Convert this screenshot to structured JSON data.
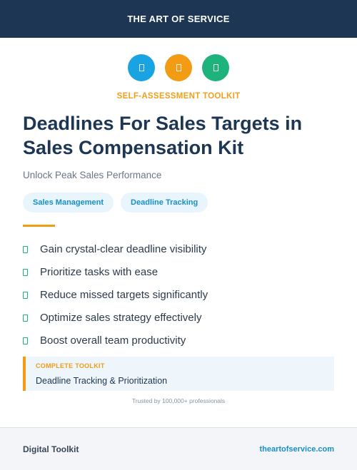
{
  "header": {
    "brand": "THE ART OF SERVICE"
  },
  "icons": [
    {
      "name": "blue-badge-icon",
      "color": "#1aa3e3"
    },
    {
      "name": "orange-badge-icon",
      "color": "#f29b14"
    },
    {
      "name": "green-badge-icon",
      "color": "#1eb37c"
    }
  ],
  "hero": {
    "kicker": "SELF-ASSESSMENT TOOLKIT",
    "title": "Deadlines For Sales Targets in Sales Compensation Kit",
    "subtitle": "Unlock Peak Sales Performance"
  },
  "tags": [
    "Sales Management",
    "Deadline Tracking"
  ],
  "benefits": [
    "Gain crystal-clear deadline visibility",
    "Prioritize tasks with ease",
    "Reduce missed targets significantly",
    "Optimize sales strategy effectively",
    "Boost overall team productivity"
  ],
  "callout": {
    "kicker": "COMPLETE TOOLKIT",
    "text": "Deadline Tracking & Prioritization"
  },
  "trust": "Trusted by 100,000+ professionals",
  "footer": {
    "left": "Digital Toolkit",
    "right": "theartofservice.com"
  },
  "colors": {
    "navy": "#1c3654",
    "accent_orange": "#f29b14",
    "accent_blue": "#1aa3e3",
    "accent_green": "#1eb37c"
  }
}
